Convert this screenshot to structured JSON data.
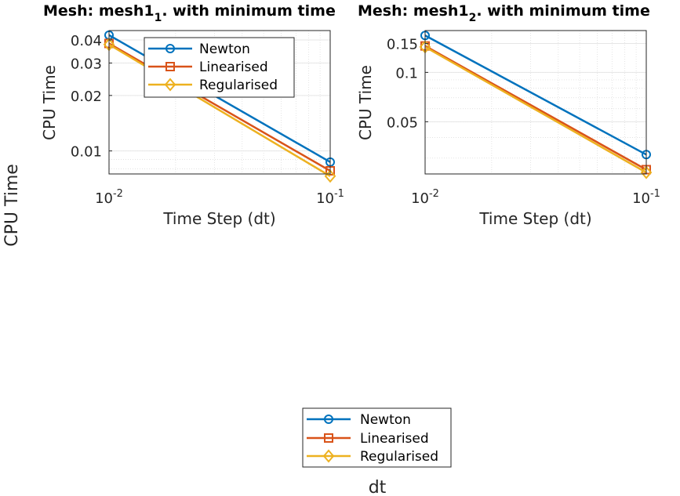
{
  "figure": {
    "shared_ylabel": "CPU Time",
    "shared_xlabel": "dt",
    "shared_legend": [
      "Newton",
      "Linearised",
      "Regularised"
    ]
  },
  "colors": {
    "Newton": "#0072BD",
    "Linearised": "#D95319",
    "Regularised": "#EDB120",
    "axis": "#262626",
    "grid": "#d9d9d9"
  },
  "chart_data": [
    {
      "type": "line",
      "title_main": "Mesh: mesh1",
      "title_sub": "1",
      "title_rest": ". with minimum time",
      "xlabel": "Time Step (dt)",
      "ylabel": "CPU Time",
      "xscale": "log",
      "yscale": "log",
      "xlim": [
        0.01,
        0.1
      ],
      "ylim": [
        0.0075,
        0.045
      ],
      "xticks": [
        {
          "value": 0.01,
          "base": "10",
          "exp": "-2"
        },
        {
          "value": 0.1,
          "base": "10",
          "exp": "-1"
        }
      ],
      "yticks": [
        {
          "value": 0.01,
          "label": "0.01"
        },
        {
          "value": 0.02,
          "label": "0.02"
        },
        {
          "value": 0.03,
          "label": "0.03"
        },
        {
          "value": 0.04,
          "label": "0.04"
        }
      ],
      "grid": true,
      "legend_position": "top-center",
      "x": [
        0.01,
        0.1
      ],
      "series": [
        {
          "name": "Newton",
          "marker": "circle",
          "values": [
            0.0425,
            0.0087
          ]
        },
        {
          "name": "Linearised",
          "marker": "square",
          "values": [
            0.0383,
            0.0078
          ]
        },
        {
          "name": "Regularised",
          "marker": "diamond",
          "values": [
            0.0378,
            0.0073
          ]
        }
      ]
    },
    {
      "type": "line",
      "title_main": "Mesh: mesh1",
      "title_sub": "2",
      "title_rest": ". with minimum time",
      "xlabel": "Time Step (dt)",
      "ylabel": "CPU Time",
      "xscale": "log",
      "yscale": "log",
      "xlim": [
        0.01,
        0.1
      ],
      "ylim": [
        0.024,
        0.18
      ],
      "xticks": [
        {
          "value": 0.01,
          "base": "10",
          "exp": "-2"
        },
        {
          "value": 0.1,
          "base": "10",
          "exp": "-1"
        }
      ],
      "yticks": [
        {
          "value": 0.05,
          "label": "0.05"
        },
        {
          "value": 0.1,
          "label": "0.1"
        },
        {
          "value": 0.15,
          "label": "0.15"
        }
      ],
      "grid": true,
      "legend_position": "none",
      "x": [
        0.01,
        0.1
      ],
      "series": [
        {
          "name": "Newton",
          "marker": "circle",
          "values": [
            0.168,
            0.0315
          ]
        },
        {
          "name": "Linearised",
          "marker": "square",
          "values": [
            0.145,
            0.0255
          ]
        },
        {
          "name": "Regularised",
          "marker": "diamond",
          "values": [
            0.143,
            0.0245
          ]
        }
      ]
    }
  ]
}
